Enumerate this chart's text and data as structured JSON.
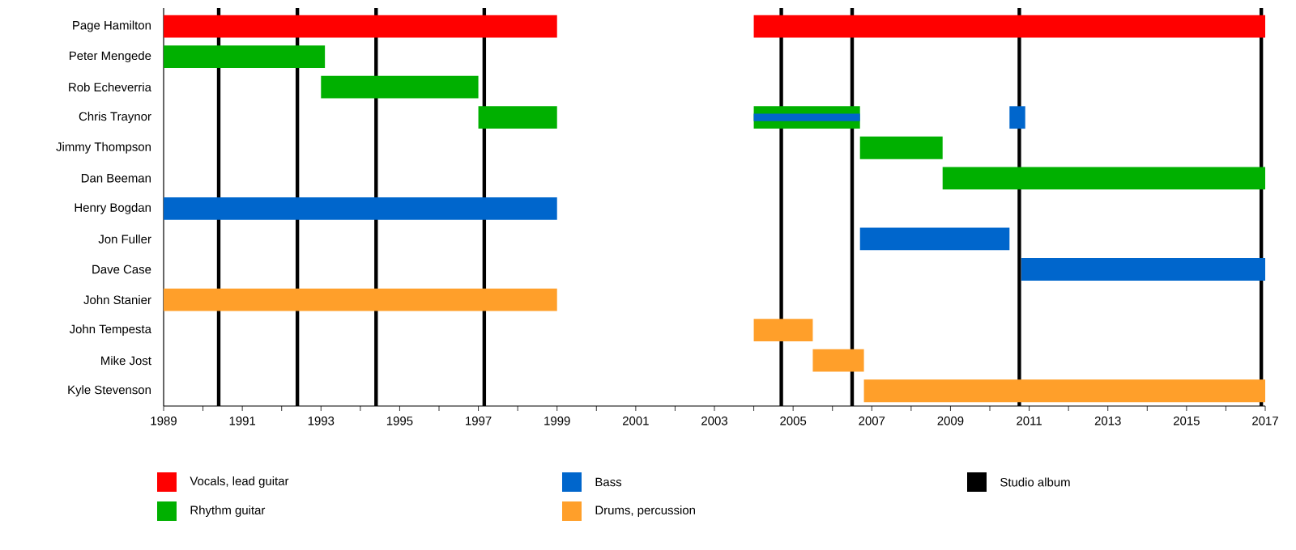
{
  "chart_data": {
    "type": "bar",
    "orientation": "horizontal",
    "legend": "bottom",
    "categories": [
      "Page Hamilton",
      "Peter Mengede",
      "Rob Echeverria",
      "Chris Traynor",
      "Jimmy Thompson",
      "Dan Beeman",
      "Henry Bogdan",
      "Jon Fuller",
      "Dave Case",
      "John Stanier",
      "John Tempesta",
      "Mike Jost",
      "Kyle Stevenson"
    ],
    "xlim": [
      1989,
      2017
    ],
    "xticks": [
      1989,
      {
        "value": 1990,
        "label": null
      },
      1991,
      {
        "value": 1992,
        "label": null
      },
      1993,
      {
        "value": 1994,
        "label": null
      },
      1995,
      {
        "value": 1996,
        "label": null
      },
      1997,
      {
        "value": 1998,
        "label": null
      },
      1999,
      {
        "value": 2000,
        "label": null
      },
      2001,
      {
        "value": 2002,
        "label": null
      },
      2003,
      {
        "value": 2004,
        "label": null
      },
      2005,
      {
        "value": 2006,
        "label": null
      },
      2007,
      {
        "value": 2008,
        "label": null
      },
      2009,
      {
        "value": 2010,
        "label": null
      },
      2011,
      {
        "value": 2012,
        "label": null
      },
      2013,
      {
        "value": 2014,
        "label": null
      },
      2015,
      {
        "value": 2016,
        "label": null
      },
      2017
    ],
    "series": [
      {
        "name": "Vocals, lead guitar",
        "color": "#ff0000",
        "values": [
          10,
          null,
          null,
          null,
          null,
          null,
          null,
          null,
          null,
          null,
          null,
          null,
          null
        ],
        "base": [
          1989,
          null,
          null,
          null,
          null,
          null,
          null,
          null,
          null,
          null,
          null,
          null,
          null
        ]
      },
      {
        "name": "Rhythm guitar",
        "color": "#00b000",
        "values": [
          null,
          4.1,
          4,
          2,
          2.1,
          8.2,
          null,
          null,
          null,
          null,
          null,
          null,
          null
        ],
        "base": [
          null,
          1989,
          1993,
          1997,
          2006.7,
          2008.8,
          null,
          null,
          null,
          null,
          null,
          null,
          null
        ]
      },
      {
        "name": "Bass",
        "color": "#0066cc",
        "values": [
          null,
          null,
          null,
          0.4,
          null,
          null,
          10,
          3.8,
          6.2,
          null,
          null,
          null,
          null
        ],
        "base": [
          null,
          null,
          null,
          2010.5,
          null,
          null,
          1989,
          2006.7,
          2010.8,
          null,
          null,
          null,
          null
        ]
      },
      {
        "name": "Drums, percussion",
        "color": "#ff9f2a",
        "values": [
          null,
          null,
          null,
          null,
          null,
          null,
          null,
          null,
          null,
          10,
          1.5,
          1.3,
          10.2
        ],
        "base": [
          null,
          null,
          null,
          null,
          null,
          null,
          null,
          null,
          null,
          1989,
          2004,
          2005.5,
          2006.8
        ]
      },
      {
        "color": "#ff0000",
        "values": [
          13,
          null,
          null,
          null,
          null,
          null,
          null,
          null,
          null,
          null,
          null,
          null,
          null
        ],
        "base": [
          2004,
          null,
          null,
          null,
          null,
          null,
          null,
          null,
          null,
          null,
          null,
          null,
          null
        ]
      },
      {
        "color": "#00b000",
        "values": [
          null,
          null,
          null,
          2.7,
          null,
          null,
          null,
          null,
          null,
          null,
          null,
          null,
          null
        ],
        "base": [
          null,
          null,
          null,
          2004,
          null,
          null,
          null,
          null,
          null,
          null,
          null,
          null,
          null
        ]
      },
      {
        "color": "#0066cc",
        "values": [
          null,
          null,
          null,
          2.7,
          null,
          null,
          null,
          null,
          null,
          null,
          null,
          null,
          null
        ],
        "base": [
          null,
          null,
          null,
          2004,
          null,
          null,
          null,
          null,
          null,
          null,
          null,
          null,
          null
        ]
      }
    ],
    "ref_lines": [
      {
        "axis": "x",
        "value": 1990.4,
        "label": "Studio album",
        "color": "#000000"
      },
      {
        "axis": "x",
        "value": 1992.4,
        "color": "#000000"
      },
      {
        "axis": "x",
        "value": 1994.4,
        "color": "#000000"
      },
      {
        "axis": "x",
        "value": 1997.15,
        "color": "#000000"
      },
      {
        "axis": "x",
        "value": 2004.7,
        "color": "#000000"
      },
      {
        "axis": "x",
        "value": 2006.5,
        "color": "#000000"
      },
      {
        "axis": "x",
        "value": 2010.75,
        "color": "#000000"
      },
      {
        "axis": "x",
        "value": 2016.9,
        "color": "#000000"
      }
    ]
  }
}
